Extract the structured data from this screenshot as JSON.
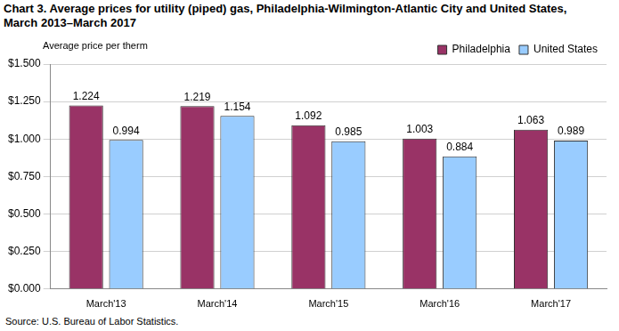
{
  "chart_data": {
    "type": "bar",
    "title": "Chart 3. Average prices for utility (piped) gas, Philadelphia-Wilmington-Atlantic City and United States, March 2013–March 2017",
    "y_label": "Average price per therm",
    "source": "Source: U.S. Bureau of Labor Statistics.",
    "categories": [
      "March'13",
      "March'14",
      "March'15",
      "March'16",
      "March'17"
    ],
    "series": [
      {
        "name": "Philadelphia",
        "color": "#993366",
        "values": [
          1.224,
          1.219,
          1.092,
          1.003,
          1.063
        ]
      },
      {
        "name": "United States",
        "color": "#99ccff",
        "values": [
          0.994,
          1.154,
          0.985,
          0.884,
          0.989
        ]
      }
    ],
    "ylim": [
      0,
      1.5
    ],
    "yticks": [
      {
        "value": 0,
        "label": "$0.000"
      },
      {
        "value": 0.25,
        "label": "$0.250"
      },
      {
        "value": 0.5,
        "label": "$0.500"
      },
      {
        "value": 0.75,
        "label": "$0.750"
      },
      {
        "value": 1,
        "label": "$1.000"
      },
      {
        "value": 1.25,
        "label": "$1.250"
      },
      {
        "value": 1.5,
        "label": "$1.500"
      }
    ],
    "grid": true,
    "legend": "top right",
    "data_labels": true
  }
}
